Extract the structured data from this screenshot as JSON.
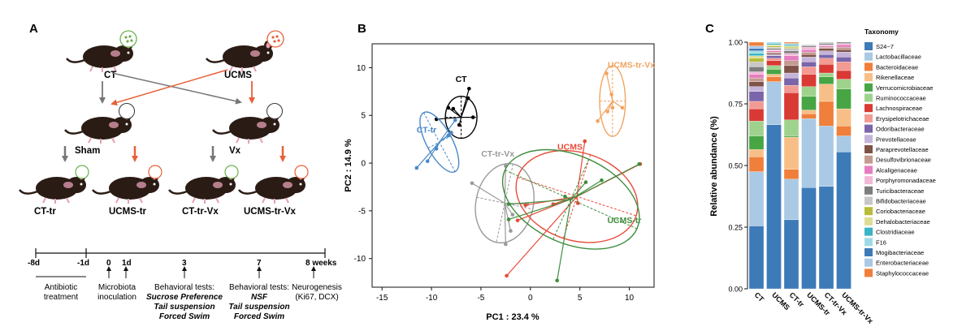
{
  "panel_a": {
    "letter": "A",
    "groups": {
      "ct": "CT",
      "ucms": "UCMS",
      "sham": "Sham",
      "vx": "Vx",
      "ct_tr": "CT-tr",
      "ucms_tr": "UCMS-tr",
      "ct_tr_vx": "CT-tr-Vx",
      "ucms_tr_vx": "UCMS-tr-Vx"
    },
    "timeline": {
      "ticks": [
        "-8d",
        "-1d",
        "0",
        "1d",
        "3",
        "7",
        "8 weeks"
      ],
      "antibiotic": [
        "Antibiotic",
        "treatment"
      ],
      "microbiota": [
        "Microbiota",
        "inoculation"
      ],
      "behav1_title": "Behavioral tests:",
      "behav1_tests": [
        "Sucrose Preference",
        "Tail suspension",
        "Forced Swim"
      ],
      "behav2_title": "Behavioral tests:",
      "behav2_tests": [
        "NSF",
        "Tail suspension",
        "Forced Swim"
      ],
      "neuro": [
        "Neurogenesis",
        "(Ki67, DCX)"
      ]
    },
    "colors": {
      "ct_arrow": "#777777",
      "ucms_arrow": "#e8613a",
      "mouse": "#2a1b14",
      "microbe_green": "#6ab04c",
      "microbe_orange": "#e8613a"
    }
  },
  "panel_b": {
    "letter": "B",
    "chart_data": {
      "type": "scatter",
      "xlabel": "PC1 :  23.4 %",
      "ylabel": "PC2 :  14.9 %",
      "xlim": [
        -16,
        12.5
      ],
      "ylim": [
        -13,
        12.5
      ],
      "xticks": [
        -15,
        -10,
        -5,
        0,
        5,
        10
      ],
      "yticks": [
        -10,
        -5,
        0,
        5,
        10
      ],
      "series": [
        {
          "name": "CT",
          "color": "#000000",
          "centroid": [
            -7,
            4.8
          ],
          "ellipse": {
            "rx": 1.6,
            "ry": 2.2,
            "angle": 0
          },
          "points": [
            [
              -6.2,
              7.8
            ],
            [
              -6.3,
              6.8
            ],
            [
              -8.3,
              5.8
            ],
            [
              -7.8,
              5.7
            ],
            [
              -9.5,
              4.6
            ],
            [
              -7.2,
              4.0
            ],
            [
              -5.8,
              4.8
            ]
          ]
        },
        {
          "name": "CT-tr",
          "color": "#4a88c7",
          "centroid": [
            -9.2,
            2.2
          ],
          "ellipse": {
            "rx": 1.3,
            "ry": 3.5,
            "angle": 28
          },
          "points": [
            [
              -11.5,
              -0.5
            ],
            [
              -10.4,
              0.2
            ],
            [
              -9.5,
              1.5
            ],
            [
              -8.3,
              2.9
            ],
            [
              -7.6,
              4.5
            ],
            [
              -8.0,
              3.2
            ]
          ]
        },
        {
          "name": "CT-tr-Vx",
          "color": "#9a9a9a",
          "centroid": [
            -2.6,
            -4.2
          ],
          "ellipse": {
            "rx": 2.9,
            "ry": 4.2,
            "angle": -12
          },
          "points": [
            [
              -2.5,
              -0.3
            ],
            [
              -5.9,
              -2.1
            ],
            [
              -2.5,
              -8.5
            ],
            [
              -0.3,
              -4.3
            ],
            [
              -2.0,
              -7.1
            ],
            [
              -1.8,
              -5.4
            ]
          ]
        },
        {
          "name": "UCMS",
          "color": "#e84a37",
          "centroid": [
            4.7,
            -3.5
          ],
          "ellipse": {
            "rx": 6.3,
            "ry": 4.6,
            "angle": -18
          },
          "points": [
            [
              5.5,
              2.3
            ],
            [
              -1.3,
              -6.0
            ],
            [
              -2.4,
              -11.8
            ],
            [
              11.1,
              -0.1
            ],
            [
              -0.5,
              -4.4
            ],
            [
              2.3,
              -4.3
            ],
            [
              4.8,
              -4.2
            ]
          ]
        },
        {
          "name": "UCMS-tr",
          "color": "#3f8d3e",
          "centroid": [
            4.1,
            -3.8
          ],
          "ellipse": {
            "rx": 7.3,
            "ry": 4.6,
            "angle": -24
          },
          "points": [
            [
              5.6,
              -2.0
            ],
            [
              -2.2,
              -5.9
            ],
            [
              -2.2,
              -4.3
            ],
            [
              11.0,
              -0.1
            ],
            [
              2.7,
              -12.3
            ],
            [
              7.2,
              -1.8
            ],
            [
              3.5,
              -3.5
            ]
          ]
        },
        {
          "name": "UCMS-tr-Vx",
          "color": "#f1a45f",
          "centroid": [
            8.3,
            6.5
          ],
          "ellipse": {
            "rx": 1.3,
            "ry": 3.7,
            "angle": 0
          },
          "points": [
            [
              7.7,
              9.4
            ],
            [
              8.2,
              7.2
            ],
            [
              9.3,
              5.8
            ],
            [
              7.8,
              5.4
            ],
            [
              6.8,
              4.4
            ],
            [
              8.3,
              5.8
            ]
          ]
        }
      ]
    }
  },
  "panel_c": {
    "letter": "C",
    "chart_data": {
      "type": "bar",
      "stacked": true,
      "ylabel": "Relative abundance (%)",
      "ylim": [
        0,
        1
      ],
      "yticks": [
        "0.00",
        "0.25",
        "0.50",
        "0.75",
        "1.00"
      ],
      "categories": [
        "CT",
        "UCMS",
        "CT-tr",
        "UCMS-tr",
        "CT-tr-Vx",
        "UCMS-tr-Vx"
      ],
      "legend_title": "Taxonomy",
      "taxa": [
        {
          "name": "S24−7",
          "color": "#3d7ab8"
        },
        {
          "name": "Lactobacillaceae",
          "color": "#a9c9e4"
        },
        {
          "name": "Bacteroidaceae",
          "color": "#ef7f3b"
        },
        {
          "name": "Rikenellaceae",
          "color": "#f7bf87"
        },
        {
          "name": "Verrucomicrobiaceae",
          "color": "#47a544"
        },
        {
          "name": "Ruminococcaceae",
          "color": "#9fd38d"
        },
        {
          "name": "Lachnospiraceae",
          "color": "#d93a34"
        },
        {
          "name": "Erysipelotrichaceae",
          "color": "#f29a93"
        },
        {
          "name": "Odoribacteraceae",
          "color": "#7a64aa"
        },
        {
          "name": "Prevotellaceae",
          "color": "#c5b4d9"
        },
        {
          "name": "Paraprevotellaceae",
          "color": "#7f5247"
        },
        {
          "name": "Desulfovibrionaceae",
          "color": "#c39b90"
        },
        {
          "name": "Alcaligenaceae",
          "color": "#e67dc0"
        },
        {
          "name": "Porphyromonadaceae",
          "color": "#f2b8d8"
        },
        {
          "name": "Turicibacteraceae",
          "color": "#7d7d7d"
        },
        {
          "name": "Bifidobacteriaceae",
          "color": "#c7c7c7"
        },
        {
          "name": "Coriobacteriaceae",
          "color": "#b8bc38"
        },
        {
          "name": "Dehalobacteriaceae",
          "color": "#dedd95"
        },
        {
          "name": "Clostridiaceae",
          "color": "#39b5c6"
        },
        {
          "name": "F16",
          "color": "#9fdbe6"
        },
        {
          "name": "Mogibacteriaceae",
          "color": "#3d7ab8"
        },
        {
          "name": "Enterobacteriaceae",
          "color": "#a9c9e4"
        },
        {
          "name": "Staphylococcaceae",
          "color": "#ef7f3b"
        }
      ],
      "stacks": [
        [
          0.255,
          0.22,
          0.06,
          0.03,
          0.055,
          0.06,
          0.05,
          0.03,
          0.04,
          0.02,
          0.02,
          0.015,
          0.015,
          0.01,
          0.02,
          0.02,
          0.015,
          0.01,
          0.01,
          0.01,
          0.01,
          0.01,
          0.015
        ],
        [
          0.665,
          0.175,
          0.02,
          0.01,
          0.02,
          0.015,
          0.02,
          0.01,
          0.01,
          0.005,
          0.005,
          0.005,
          0.005,
          0.005,
          0.005,
          0.005,
          0.005,
          0.005,
          0.005,
          0.005,
          0.0,
          0.0,
          0.0
        ],
        [
          0.28,
          0.165,
          0.04,
          0.13,
          0.005,
          0.065,
          0.11,
          0.03,
          0.03,
          0.02,
          0.03,
          0.02,
          0.02,
          0.01,
          0.01,
          0.01,
          0.005,
          0.005,
          0.005,
          0.005,
          0.0,
          0.0,
          0.005
        ],
        [
          0.41,
          0.28,
          0.02,
          0.015,
          0.055,
          0.04,
          0.05,
          0.03,
          0.02,
          0.02,
          0.01,
          0.01,
          0.01,
          0.01,
          0.005,
          0.005,
          0.0,
          0.0,
          0.0,
          0.0,
          0.0,
          0.0,
          0.0
        ],
        [
          0.415,
          0.245,
          0.1,
          0.07,
          0.03,
          0.015,
          0.035,
          0.025,
          0.015,
          0.015,
          0.01,
          0.005,
          0.005,
          0.005,
          0.005,
          0.005,
          0.0,
          0.0,
          0.0,
          0.0,
          0.0,
          0.0,
          0.0
        ],
        [
          0.555,
          0.065,
          0.04,
          0.07,
          0.08,
          0.04,
          0.035,
          0.035,
          0.02,
          0.02,
          0.01,
          0.01,
          0.01,
          0.005,
          0.005,
          0.0,
          0.0,
          0.0,
          0.0,
          0.0,
          0.0,
          0.0,
          0.0
        ]
      ]
    }
  }
}
